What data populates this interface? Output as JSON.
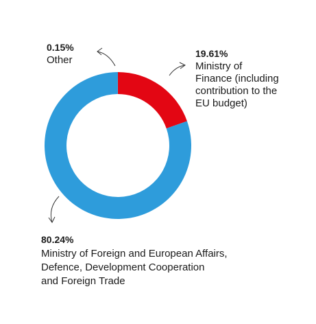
{
  "chart_data": {
    "type": "pie",
    "style": "donut",
    "slices": [
      {
        "value": 19.61,
        "value_label": "19.61%",
        "label_lines": [
          "Ministry of",
          "Finance (including",
          "contribution to the",
          "EU budget)"
        ],
        "color": "#e30613"
      },
      {
        "value": 80.24,
        "value_label": "80.24%",
        "label_lines": [
          "Ministry of Foreign and European Affairs,",
          "Defence, Development Cooperation",
          "and Foreign Trade"
        ],
        "color": "#2e9cdb"
      },
      {
        "value": 0.15,
        "value_label": "0.15%",
        "label_lines": [
          "Other"
        ],
        "color": "#2e9cdb"
      }
    ]
  }
}
